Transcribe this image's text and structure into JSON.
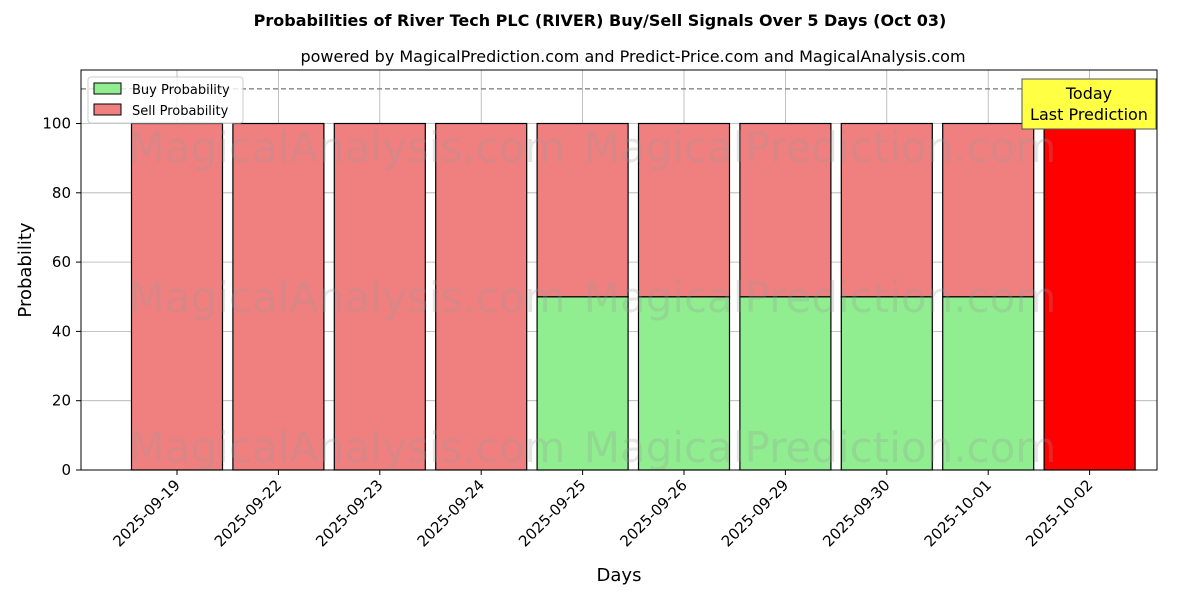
{
  "chart_data": {
    "type": "bar",
    "stacked": true,
    "title": "Probabilities of River Tech PLC (RIVER) Buy/Sell Signals Over 5 Days (Oct 03)",
    "subtitle": "powered by MagicalPrediction.com and Predict-Price.com and MagicalAnalysis.com",
    "xlabel": "Days",
    "ylabel": "Probability",
    "ylim": [
      0,
      115
    ],
    "yticks": [
      0,
      20,
      40,
      60,
      80,
      100
    ],
    "reference_line": 110,
    "grid": true,
    "legend_position": "top-left",
    "categories": [
      "2025-09-19",
      "2025-09-22",
      "2025-09-23",
      "2025-09-24",
      "2025-09-25",
      "2025-09-26",
      "2025-09-29",
      "2025-09-30",
      "2025-10-01",
      "2025-10-02"
    ],
    "series": [
      {
        "name": "Buy Probability",
        "color": "#90ee90",
        "values": [
          0,
          0,
          0,
          0,
          50,
          50,
          50,
          50,
          50,
          0
        ]
      },
      {
        "name": "Sell Probability",
        "color": "#f08080",
        "values": [
          100,
          100,
          100,
          100,
          50,
          50,
          50,
          50,
          50,
          100
        ]
      }
    ],
    "highlight": {
      "index": 9,
      "color": "#ff0000"
    },
    "annotation": {
      "lines": [
        "Today",
        "Last Prediction"
      ],
      "color": "#ffff44"
    },
    "watermarks": [
      "MagicalAnalysis.com",
      "MagicalPrediction.com"
    ]
  }
}
